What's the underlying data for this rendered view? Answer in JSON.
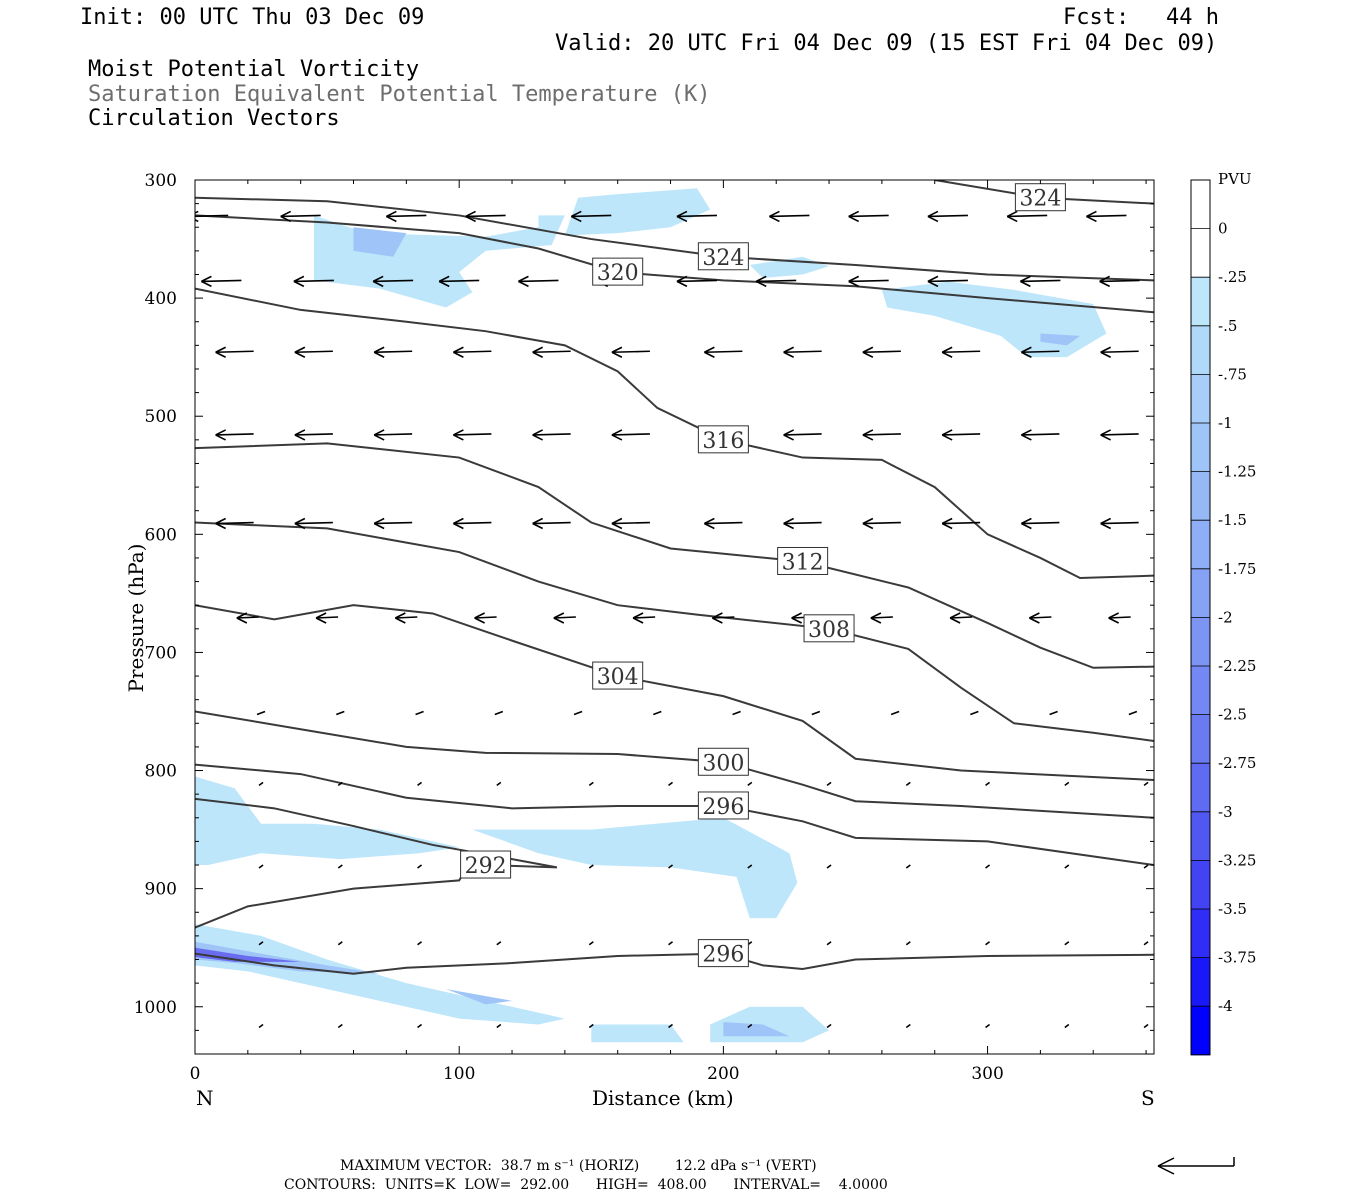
{
  "header": {
    "init": "Init: 00 UTC Thu 03 Dec 09",
    "fcst_label": "Fcst:",
    "fcst_value": "44 h",
    "valid": "Valid: 20 UTC Fri 04 Dec 09 (15 EST Fri 04 Dec 09)",
    "field1": "Moist Potential Vorticity",
    "field2": "Saturation Equivalent Potential Temperature (K)",
    "field3": "Circulation Vectors"
  },
  "footer": {
    "max_vector": "MAXIMUM VECTOR:  38.7 m s⁻¹ (HORIZ)        12.2 dPa s⁻¹ (VERT)",
    "contours": "CONTOURS:  UNITS=K  LOW=  292.00      HIGH=  408.00      INTERVAL=    4.0000"
  },
  "colors": {
    "contour": "#3a3a3a",
    "pv_light": "#bde6fb",
    "pv_mid": "#9fc4f7",
    "pv_dark": "#6a6cf0",
    "pv_max": "#0000ff"
  },
  "chart_data": {
    "type": "cross-section",
    "xlabel": "Distance (km)",
    "ylabel": "Pressure (hPa)",
    "xlim": [
      0,
      363
    ],
    "ylim": [
      1040,
      300
    ],
    "x_ticks": [
      0,
      100,
      200,
      300
    ],
    "y_ticks": [
      300,
      400,
      500,
      600,
      700,
      800,
      900,
      1000
    ],
    "endpoints": {
      "left": "N",
      "right": "S"
    },
    "colorbar": {
      "unit": "PVU",
      "levels": [
        "0",
        "-.25",
        "-.5",
        "-.75",
        "-1",
        "-1.25",
        "-1.5",
        "-1.75",
        "-2",
        "-2.25",
        "-2.5",
        "-2.75",
        "-3",
        "-3.25",
        "-3.5",
        "-3.75",
        "-4"
      ],
      "colors": [
        "#ffffff",
        "#ffffff",
        "#bde6fb",
        "#b0d9f9",
        "#a7cdf8",
        "#9fc4f7",
        "#96b9f6",
        "#8eaef5",
        "#85a2f4",
        "#7c95f3",
        "#7388f2",
        "#6a7bf1",
        "#5f6bf1",
        "#5158f2",
        "#4244f4",
        "#2f2df6",
        "#1818f9",
        "#0000ff"
      ]
    },
    "theta_e_contours": [
      {
        "label": "324",
        "points": [
          [
            0,
            315
          ],
          [
            50,
            318
          ],
          [
            100,
            330
          ],
          [
            150,
            350
          ],
          [
            200,
            365
          ],
          [
            250,
            372
          ],
          [
            300,
            380
          ],
          [
            363,
            385
          ]
        ]
      },
      {
        "label": "324",
        "points": [
          [
            280,
            300
          ],
          [
            320,
            315
          ],
          [
            363,
            320
          ]
        ]
      },
      {
        "label": "320",
        "points": [
          [
            0,
            330
          ],
          [
            50,
            336
          ],
          [
            100,
            345
          ],
          [
            130,
            358
          ],
          [
            160,
            378
          ],
          [
            200,
            385
          ],
          [
            250,
            390
          ],
          [
            300,
            400
          ],
          [
            363,
            412
          ]
        ]
      },
      {
        "label": "316",
        "points": [
          [
            0,
            392
          ],
          [
            40,
            410
          ],
          [
            80,
            420
          ],
          [
            110,
            428
          ],
          [
            140,
            440
          ],
          [
            160,
            462
          ],
          [
            175,
            493
          ],
          [
            200,
            520
          ],
          [
            230,
            535
          ],
          [
            260,
            537
          ],
          [
            280,
            560
          ],
          [
            300,
            600
          ],
          [
            320,
            620
          ],
          [
            335,
            637
          ],
          [
            363,
            635
          ]
        ]
      },
      {
        "label": "312",
        "points": [
          [
            0,
            527
          ],
          [
            50,
            523
          ],
          [
            100,
            535
          ],
          [
            130,
            560
          ],
          [
            150,
            590
          ],
          [
            180,
            612
          ],
          [
            230,
            623
          ],
          [
            270,
            645
          ],
          [
            300,
            675
          ],
          [
            320,
            696
          ],
          [
            340,
            713
          ],
          [
            363,
            712
          ]
        ]
      },
      {
        "label": "308",
        "points": [
          [
            0,
            590
          ],
          [
            50,
            595
          ],
          [
            100,
            615
          ],
          [
            130,
            640
          ],
          [
            160,
            660
          ],
          [
            190,
            668
          ],
          [
            240,
            680
          ],
          [
            270,
            697
          ],
          [
            290,
            730
          ],
          [
            310,
            760
          ],
          [
            340,
            768
          ],
          [
            363,
            775
          ]
        ]
      },
      {
        "label": "304",
        "points": [
          [
            0,
            660
          ],
          [
            30,
            672
          ],
          [
            60,
            660
          ],
          [
            90,
            667
          ],
          [
            120,
            690
          ],
          [
            160,
            720
          ],
          [
            200,
            737
          ],
          [
            230,
            758
          ],
          [
            250,
            790
          ],
          [
            290,
            800
          ],
          [
            363,
            808
          ]
        ]
      },
      {
        "label": "300",
        "points": [
          [
            0,
            750
          ],
          [
            40,
            765
          ],
          [
            80,
            780
          ],
          [
            110,
            785
          ],
          [
            160,
            786
          ],
          [
            200,
            793
          ],
          [
            230,
            812
          ],
          [
            250,
            826
          ],
          [
            290,
            830
          ],
          [
            363,
            840
          ]
        ]
      },
      {
        "label": "296",
        "points": [
          [
            0,
            795
          ],
          [
            40,
            803
          ],
          [
            80,
            823
          ],
          [
            120,
            832
          ],
          [
            160,
            830
          ],
          [
            200,
            830
          ],
          [
            230,
            843
          ],
          [
            250,
            857
          ],
          [
            300,
            860
          ],
          [
            363,
            880
          ]
        ]
      },
      {
        "label": "292",
        "points": [
          [
            0,
            824
          ],
          [
            30,
            832
          ],
          [
            60,
            847
          ],
          [
            90,
            863
          ],
          [
            120,
            875
          ],
          [
            137,
            882
          ],
          [
            110,
            880
          ],
          [
            103,
            882
          ],
          [
            100,
            893
          ],
          [
            60,
            900
          ],
          [
            20,
            915
          ],
          [
            0,
            933
          ]
        ]
      },
      {
        "label": "296",
        "points": [
          [
            0,
            955
          ],
          [
            30,
            965
          ],
          [
            60,
            972
          ],
          [
            80,
            967
          ],
          [
            120,
            963
          ],
          [
            160,
            957
          ],
          [
            200,
            955
          ],
          [
            215,
            965
          ],
          [
            230,
            968
          ],
          [
            250,
            960
          ],
          [
            300,
            957
          ],
          [
            363,
            956
          ]
        ]
      }
    ],
    "pv_regions": [
      {
        "level": "-0.25",
        "points": [
          [
            45,
            330
          ],
          [
            65,
            345
          ],
          [
            110,
            348
          ],
          [
            130,
            340
          ],
          [
            130,
            330
          ],
          [
            140,
            330
          ],
          [
            135,
            355
          ],
          [
            110,
            360
          ],
          [
            100,
            378
          ],
          [
            105,
            395
          ],
          [
            95,
            408
          ],
          [
            70,
            392
          ],
          [
            45,
            385
          ]
        ]
      },
      {
        "level": "-0.25",
        "points": [
          [
            140,
            347
          ],
          [
            145,
            315
          ],
          [
            160,
            312
          ],
          [
            190,
            307
          ],
          [
            195,
            325
          ],
          [
            180,
            340
          ],
          [
            160,
            345
          ]
        ]
      },
      {
        "level": "-0.25",
        "points": [
          [
            210,
            372
          ],
          [
            230,
            365
          ],
          [
            240,
            373
          ],
          [
            230,
            380
          ],
          [
            215,
            383
          ]
        ]
      },
      {
        "level": "-0.25",
        "points": [
          [
            260,
            393
          ],
          [
            285,
            386
          ],
          [
            310,
            393
          ],
          [
            340,
            405
          ],
          [
            345,
            430
          ],
          [
            330,
            450
          ],
          [
            315,
            450
          ],
          [
            305,
            432
          ],
          [
            280,
            415
          ],
          [
            262,
            408
          ]
        ]
      },
      {
        "level": "-0.25",
        "points": [
          [
            0,
            805
          ],
          [
            15,
            815
          ],
          [
            25,
            845
          ],
          [
            45,
            845
          ],
          [
            70,
            850
          ],
          [
            100,
            865
          ],
          [
            85,
            870
          ],
          [
            55,
            875
          ],
          [
            25,
            870
          ],
          [
            5,
            880
          ],
          [
            0,
            880
          ]
        ]
      },
      {
        "level": "-0.25",
        "points": [
          [
            105,
            850
          ],
          [
            150,
            850
          ],
          [
            200,
            840
          ],
          [
            225,
            870
          ],
          [
            228,
            895
          ],
          [
            220,
            925
          ],
          [
            210,
            925
          ],
          [
            205,
            890
          ],
          [
            180,
            882
          ],
          [
            150,
            880
          ],
          [
            130,
            870
          ]
        ]
      },
      {
        "level": "-0.25",
        "points": [
          [
            0,
            930
          ],
          [
            25,
            940
          ],
          [
            50,
            960
          ],
          [
            80,
            980
          ],
          [
            120,
            1000
          ],
          [
            140,
            1010
          ],
          [
            130,
            1015
          ],
          [
            100,
            1010
          ],
          [
            60,
            990
          ],
          [
            20,
            970
          ],
          [
            0,
            965
          ]
        ]
      },
      {
        "level": "-0.25",
        "points": [
          [
            150,
            1015
          ],
          [
            180,
            1015
          ],
          [
            185,
            1030
          ],
          [
            150,
            1030
          ]
        ]
      },
      {
        "level": "-0.25",
        "points": [
          [
            195,
            1015
          ],
          [
            210,
            1000
          ],
          [
            230,
            1000
          ],
          [
            240,
            1020
          ],
          [
            230,
            1030
          ],
          [
            195,
            1030
          ]
        ]
      },
      {
        "level": "-1.0",
        "points": [
          [
            60,
            340
          ],
          [
            80,
            345
          ],
          [
            75,
            365
          ],
          [
            60,
            360
          ]
        ]
      },
      {
        "level": "-1.0",
        "points": [
          [
            320,
            430
          ],
          [
            335,
            432
          ],
          [
            330,
            440
          ],
          [
            320,
            437
          ]
        ]
      },
      {
        "level": "-1.0",
        "points": [
          [
            0,
            945
          ],
          [
            25,
            955
          ],
          [
            50,
            965
          ],
          [
            70,
            972
          ],
          [
            40,
            970
          ],
          [
            15,
            963
          ],
          [
            0,
            960
          ]
        ]
      },
      {
        "level": "-1.0",
        "points": [
          [
            95,
            985
          ],
          [
            120,
            995
          ],
          [
            110,
            998
          ]
        ]
      },
      {
        "level": "-2.0",
        "points": [
          [
            0,
            950
          ],
          [
            20,
            957
          ],
          [
            40,
            962
          ],
          [
            15,
            962
          ],
          [
            0,
            958
          ]
        ]
      },
      {
        "level": "-1.0",
        "points": [
          [
            200,
            1013
          ],
          [
            215,
            1015
          ],
          [
            225,
            1025
          ],
          [
            200,
            1025
          ]
        ]
      }
    ],
    "vectors": [
      {
        "p": 330,
        "x": [
          5,
          40,
          80,
          110,
          150,
          190,
          225,
          255,
          285,
          315,
          345
        ]
      },
      {
        "p": 385,
        "x": [
          10,
          45,
          75,
          100,
          130,
          160,
          190,
          220,
          255,
          285,
          320,
          350
        ]
      },
      {
        "p": 445,
        "x": [
          15,
          45,
          75,
          105,
          135,
          165,
          200,
          230,
          260,
          290,
          320,
          350
        ]
      },
      {
        "p": 515,
        "x": [
          15,
          45,
          75,
          105,
          135,
          165,
          200,
          230,
          260,
          290,
          320,
          350
        ]
      },
      {
        "p": 590,
        "x": [
          15,
          45,
          75,
          105,
          135,
          165,
          200,
          230,
          260,
          290,
          320,
          350
        ]
      },
      {
        "p": 670,
        "x": [
          20,
          50,
          80,
          110,
          140,
          170,
          200,
          230,
          260,
          290,
          320,
          350
        ]
      },
      {
        "p": 750,
        "x": [
          25,
          55,
          85,
          115,
          145,
          175,
          205,
          235,
          265,
          295,
          325,
          355
        ]
      },
      {
        "p": 810,
        "x": [
          25,
          55,
          85,
          115,
          150,
          180,
          210,
          240,
          270,
          300,
          330,
          360
        ]
      },
      {
        "p": 880,
        "x": [
          25,
          55,
          85,
          115,
          150,
          180,
          210,
          240,
          270,
          300,
          330,
          360
        ]
      },
      {
        "p": 945,
        "x": [
          25,
          55,
          85,
          115,
          150,
          180,
          210,
          240,
          270,
          300,
          330,
          360
        ]
      },
      {
        "p": 1015,
        "x": [
          25,
          55,
          85,
          115,
          150,
          180,
          210,
          240,
          270,
          300,
          330,
          360
        ]
      }
    ]
  }
}
